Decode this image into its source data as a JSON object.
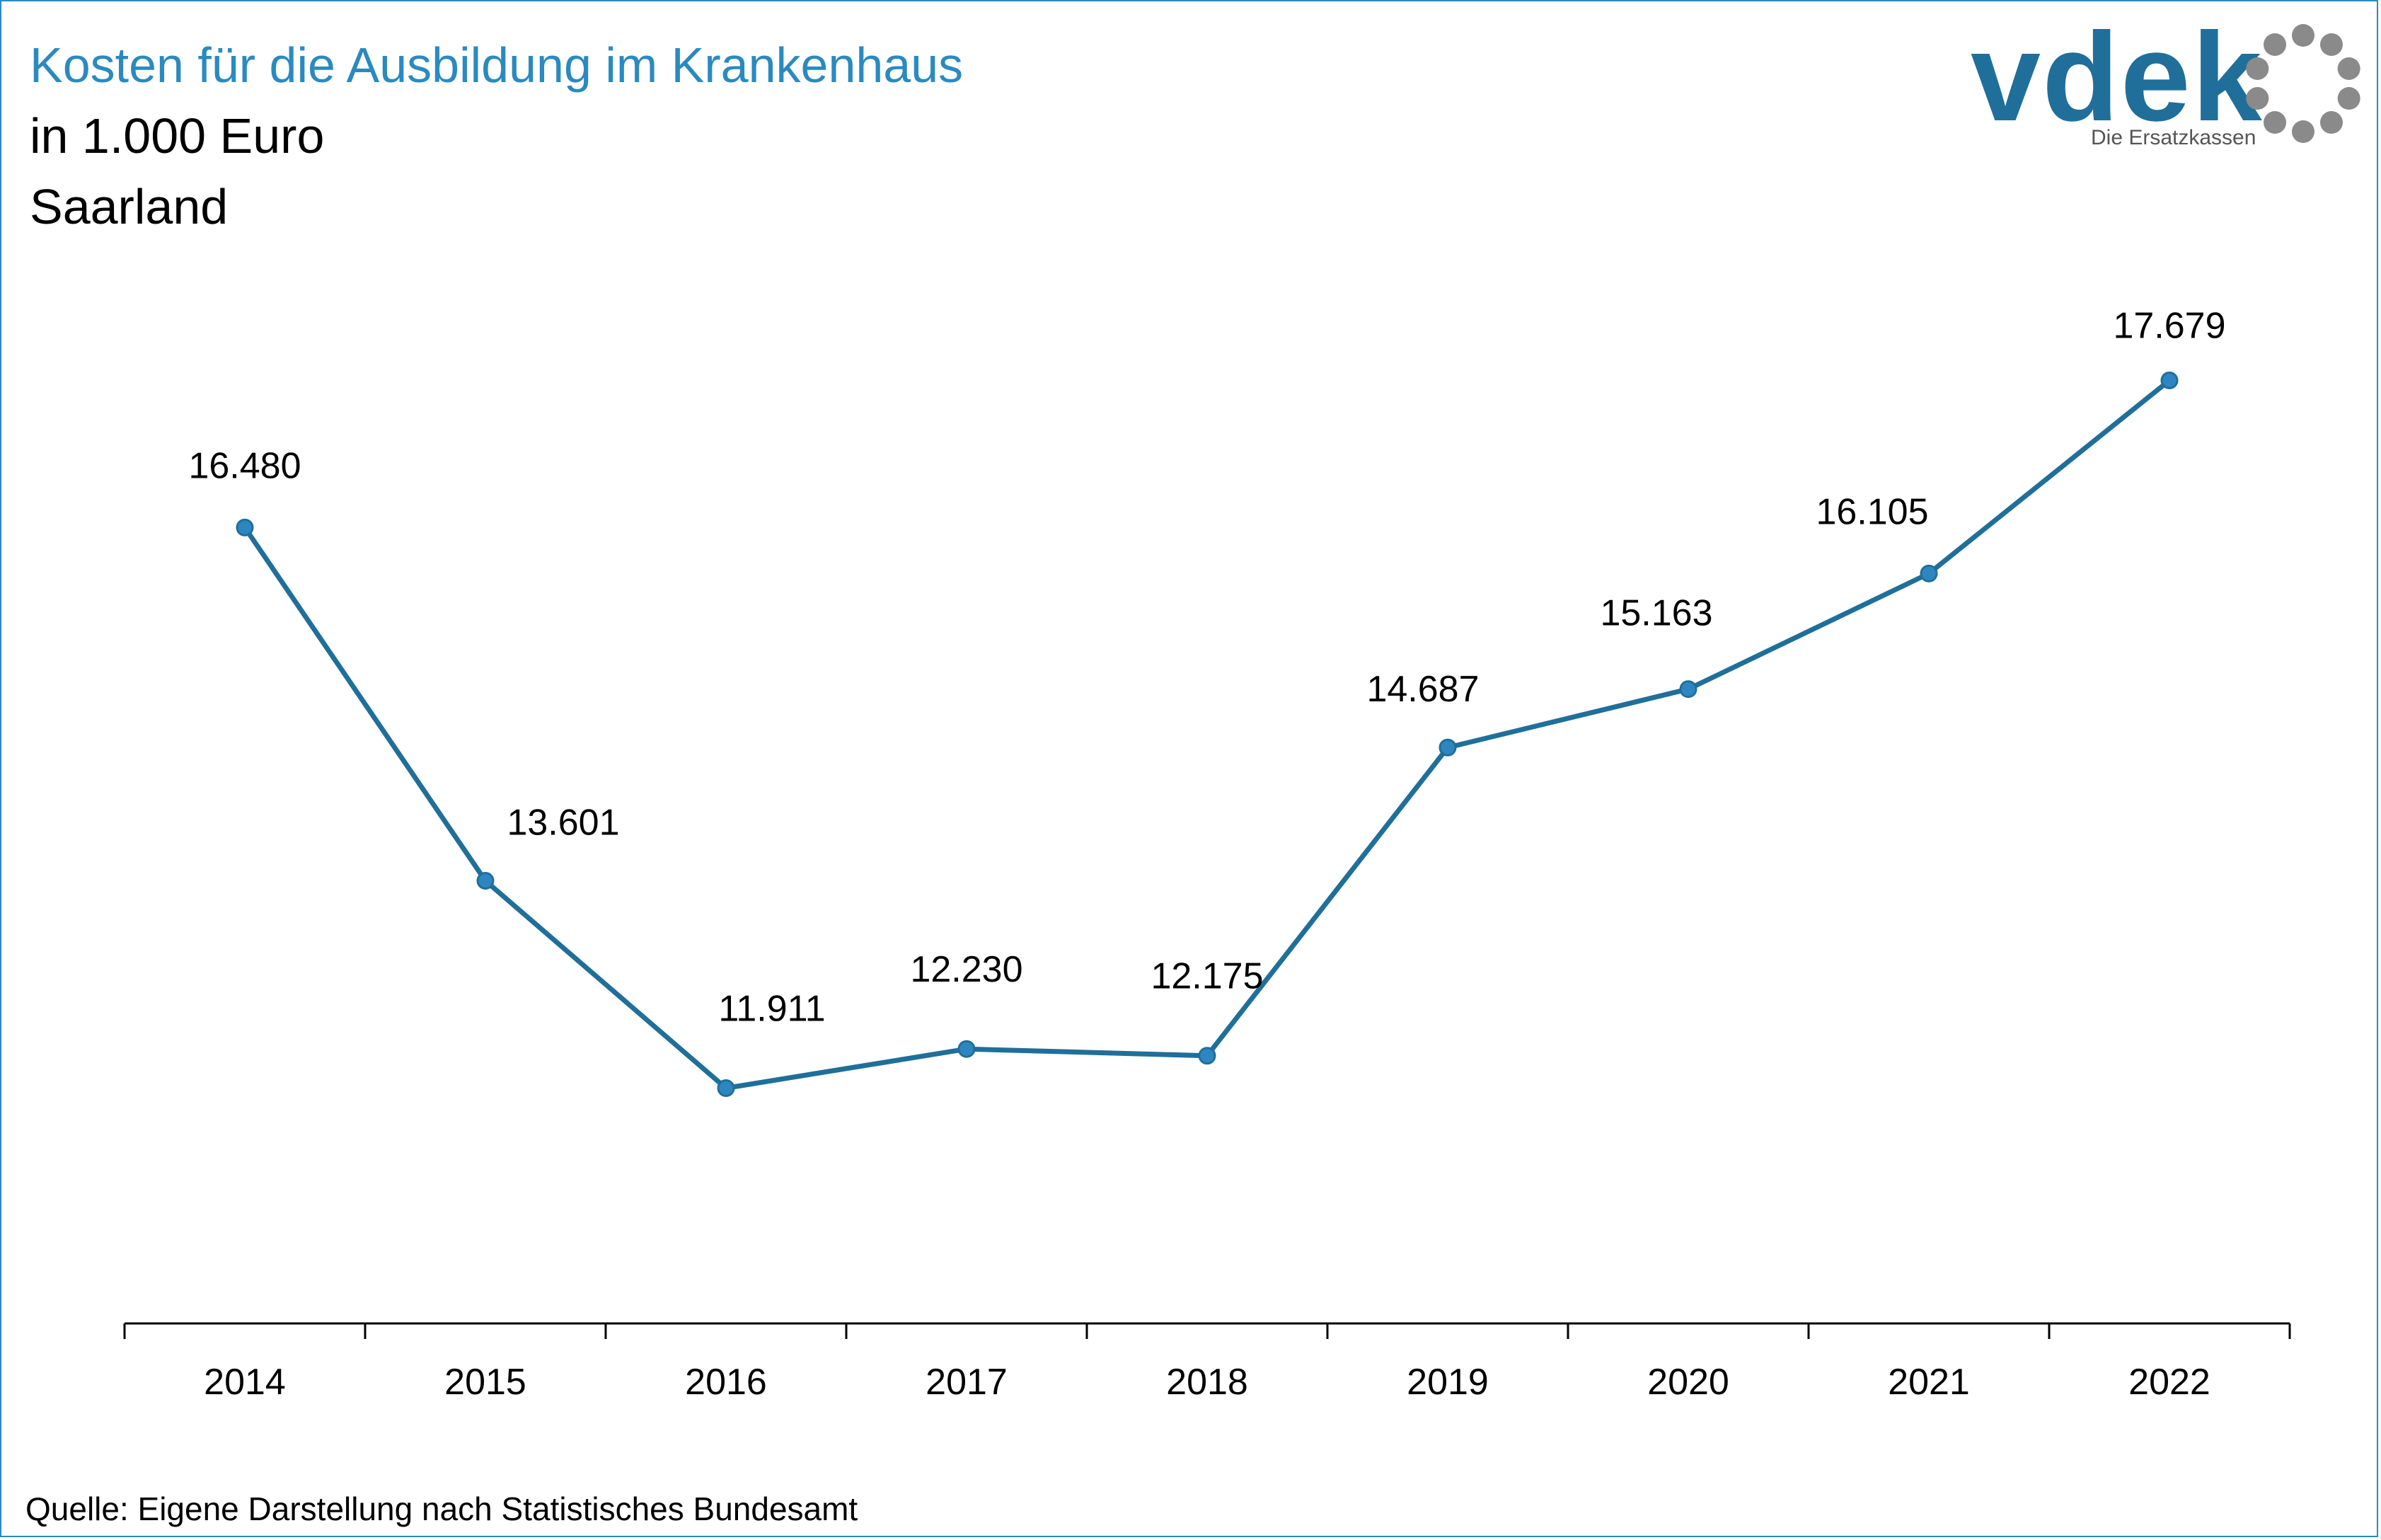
{
  "header": {
    "title": "Kosten für die Ausbildung im Krankenhaus",
    "unit": "in 1.000 Euro",
    "region": "Saarland"
  },
  "logo": {
    "word": "vdek",
    "tagline": "Die Ersatzkassen",
    "word_color": "#1f6f9a",
    "ring_color": "#8a8a8a"
  },
  "footer": {
    "source": "Quelle: Eigene Darstellung nach Statistisches Bundesamt"
  },
  "colors": {
    "accent": "#2a8ac0",
    "line": "#1f6f9a",
    "marker": "#2e86c1"
  },
  "chart_data": {
    "type": "line",
    "categories": [
      "2014",
      "2015",
      "2016",
      "2017",
      "2018",
      "2019",
      "2020",
      "2021",
      "2022"
    ],
    "series": [
      {
        "values": [
          16480,
          13601,
          11911,
          12230,
          12175,
          14687,
          15163,
          16105,
          17679
        ],
        "labels": [
          "16.480",
          "13.601",
          "11.911",
          "12.230",
          "12.175",
          "14.687",
          "15.163",
          "16.105",
          "17.679"
        ]
      }
    ],
    "title": "Kosten für die Ausbildung im Krankenhaus",
    "xlabel": "",
    "ylabel": "",
    "grid": false,
    "legend": "none"
  }
}
